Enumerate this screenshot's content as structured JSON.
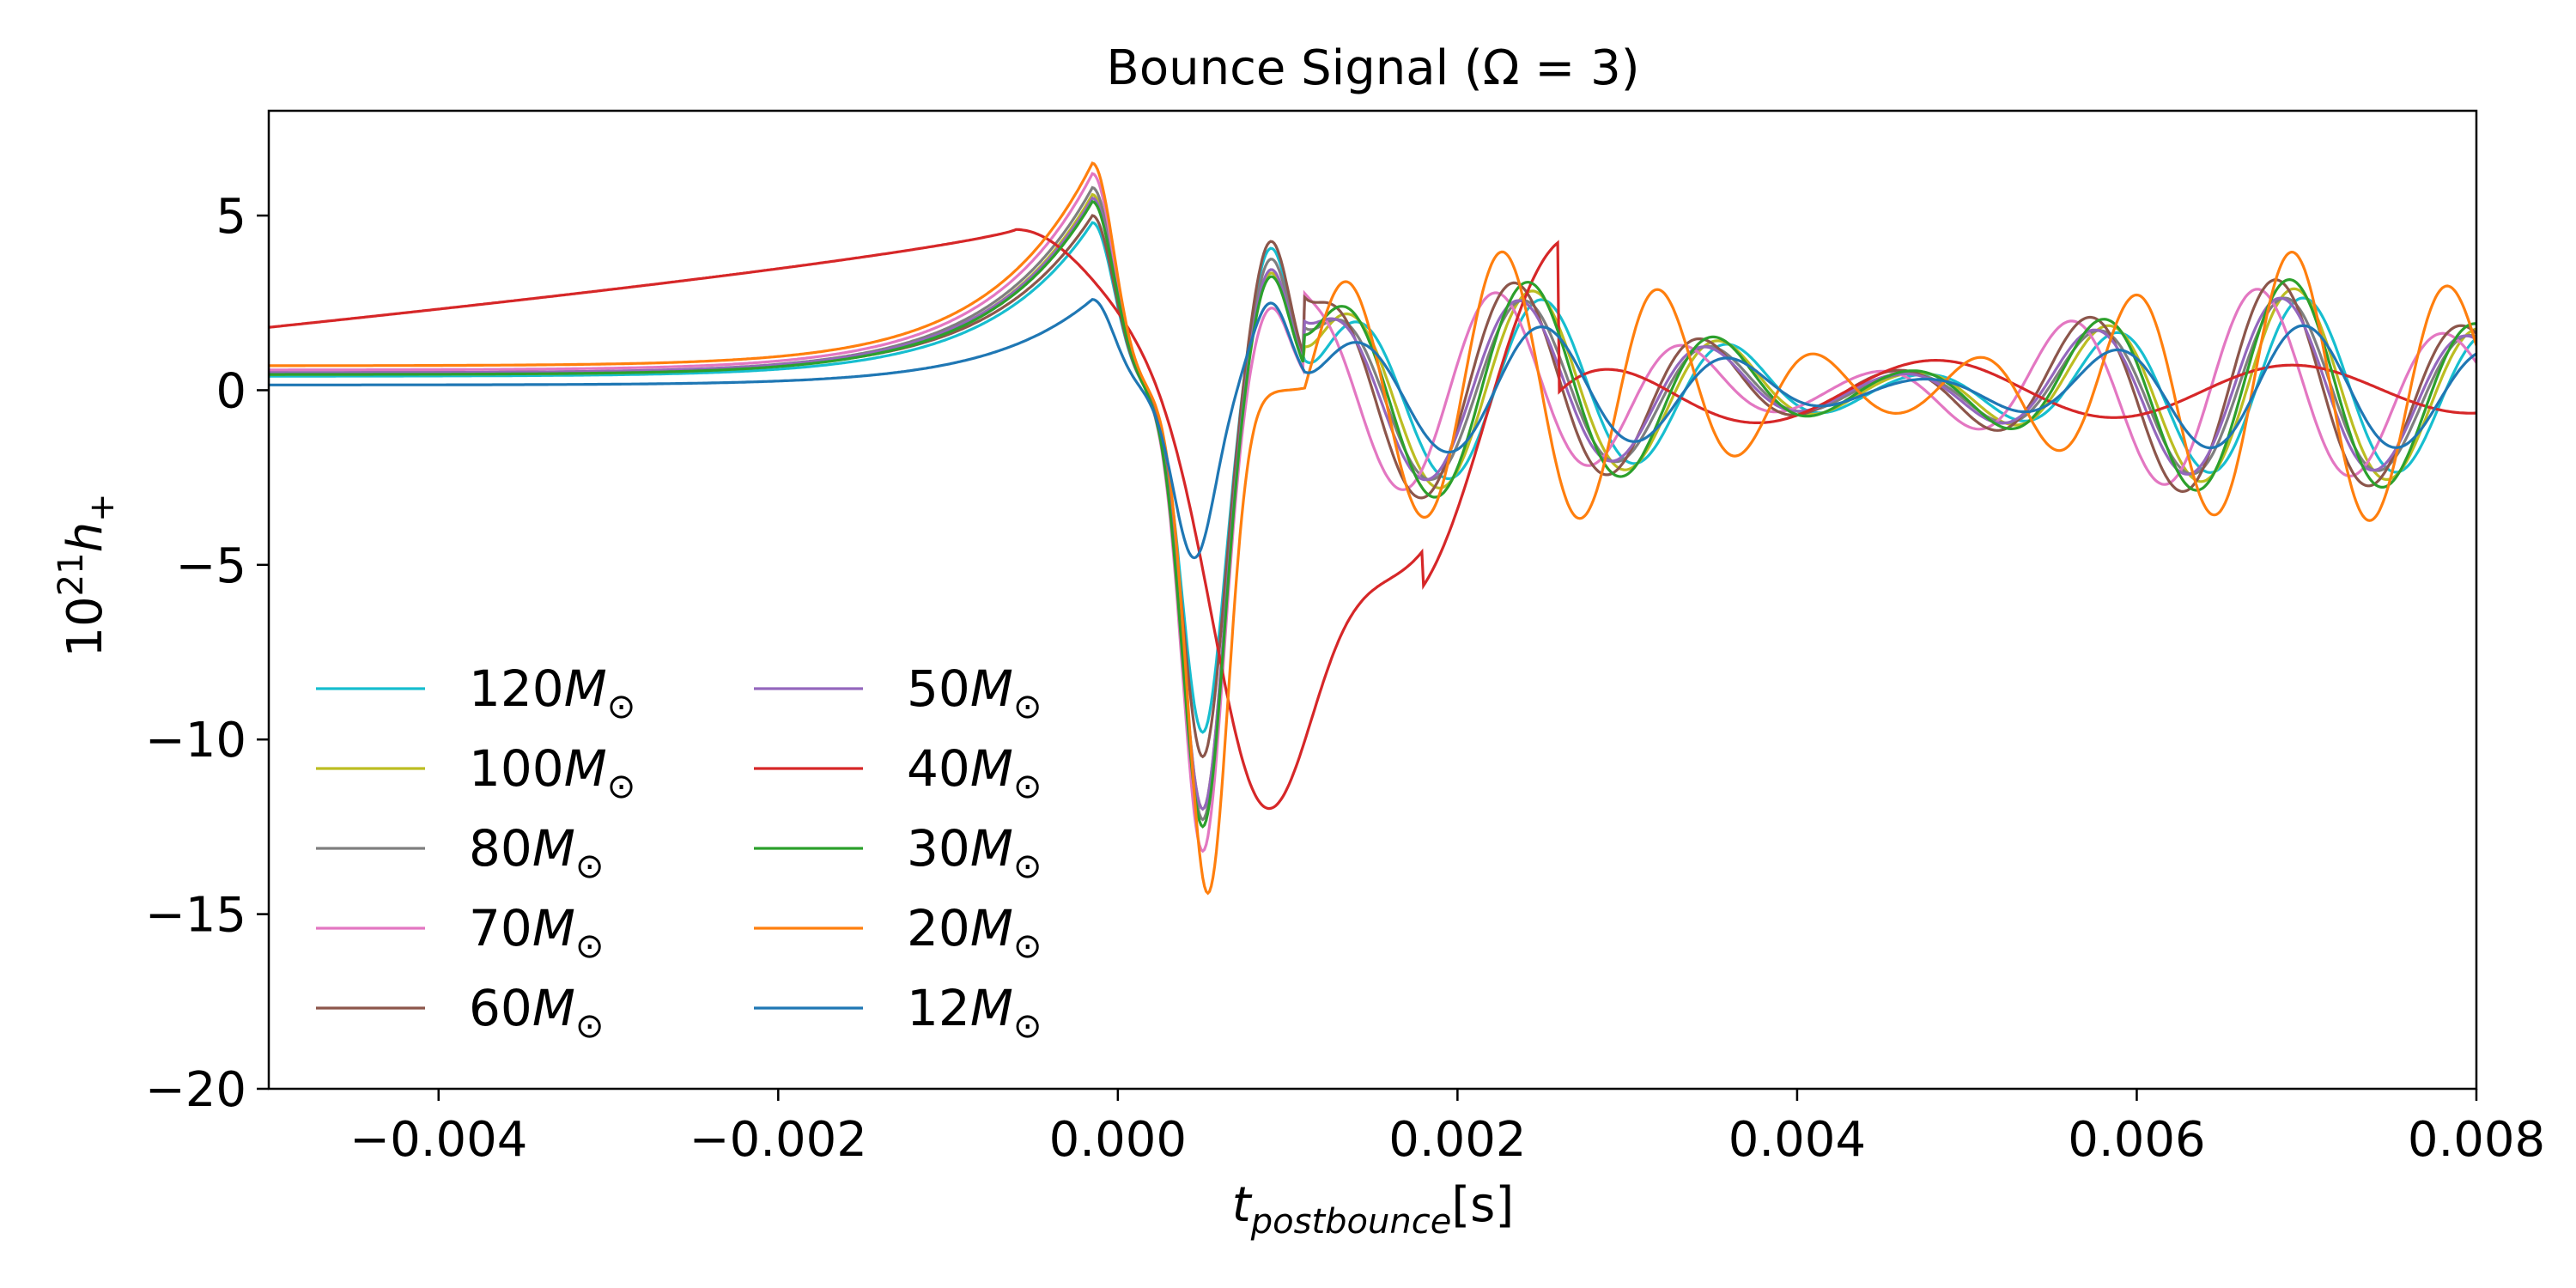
{
  "chart_data": {
    "type": "line",
    "title": "Bounce Signal (Ω = 3)",
    "xlabel": {
      "base": "t",
      "sub": "postbounce",
      "unit": "[s]"
    },
    "ylabel": {
      "prefix": "10",
      "sup": "21",
      "base": "h",
      "sub": "+"
    },
    "xlim": [
      -0.005,
      0.008
    ],
    "ylim": [
      -20,
      8
    ],
    "xticks": [
      -0.004,
      -0.002,
      0.0,
      0.002,
      0.004,
      0.006,
      0.008
    ],
    "xtick_labels": [
      "−0.004",
      "−0.002",
      "0.000",
      "0.002",
      "0.004",
      "0.006",
      "0.008"
    ],
    "yticks": [
      5,
      0,
      -5,
      -10,
      -15,
      -20
    ],
    "ytick_labels": [
      "5",
      "0",
      "−5",
      "−10",
      "−15",
      "−20"
    ],
    "grid": false,
    "legend": {
      "placement": "lower-left",
      "columns": 2,
      "unit": "M",
      "unit_sub": "⊙"
    },
    "series": [
      {
        "name": "120",
        "color": "#17becf",
        "pre_amp": 0.4,
        "peak": 4.8,
        "min": -9.8,
        "p2": 4.1,
        "amp": 1.0,
        "phase": 0.0
      },
      {
        "name": "100",
        "color": "#bcbd22",
        "pre_amp": 0.45,
        "peak": 5.6,
        "min": -12.0,
        "p2": 3.4,
        "amp": 1.1,
        "phase": 0.1
      },
      {
        "name": "80",
        "color": "#7f7f7f",
        "pre_amp": 0.5,
        "peak": 5.8,
        "min": -12.3,
        "p2": 3.8,
        "amp": 1.0,
        "phase": 0.2
      },
      {
        "name": "70",
        "color": "#e377c2",
        "pre_amp": 0.58,
        "peak": 6.2,
        "min": -13.2,
        "p2": 2.4,
        "amp": 1.1,
        "phase": 0.5
      },
      {
        "name": "60",
        "color": "#8c564b",
        "pre_amp": 0.5,
        "peak": 5.0,
        "min": -10.5,
        "p2": 4.3,
        "amp": 1.2,
        "phase": 0.3
      },
      {
        "name": "50",
        "color": "#9467bd",
        "pre_amp": 0.5,
        "peak": 5.5,
        "min": -12.0,
        "p2": 3.5,
        "amp": 1.0,
        "phase": 0.25
      },
      {
        "name": "40",
        "color": "#d62728",
        "pre_amp": 1.8,
        "peak": 4.6,
        "min": -10.8,
        "p2": 0.0,
        "amp": 0.5,
        "phase": 0.0
      },
      {
        "name": "30",
        "color": "#2ca02c",
        "pre_amp": 0.45,
        "peak": 5.4,
        "min": -12.5,
        "p2": 3.3,
        "amp": 1.2,
        "phase": 0.15
      },
      {
        "name": "20",
        "color": "#ff7f0e",
        "pre_amp": 0.7,
        "peak": 6.5,
        "min": -14.4,
        "p2": 0.3,
        "amp": 1.5,
        "phase": 0.0
      },
      {
        "name": "12",
        "color": "#1f77b4",
        "pre_amp": 0.15,
        "peak": 2.6,
        "min": -4.8,
        "p2": 2.5,
        "amp": 0.7,
        "phase": 0.0
      }
    ]
  }
}
